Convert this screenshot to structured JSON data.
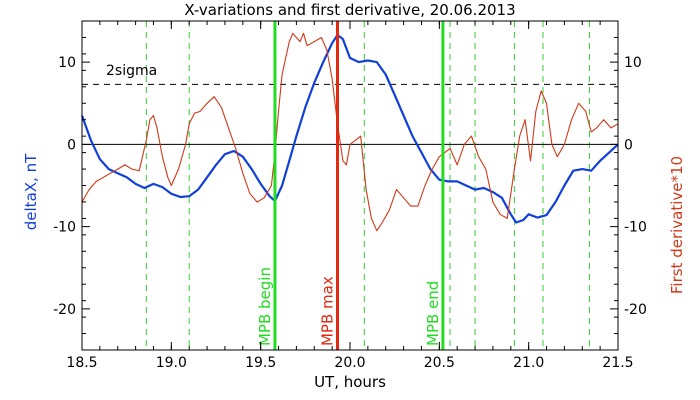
{
  "chart_data": {
    "type": "line",
    "title": "X-variations and first derivative, 20.06.2013",
    "xlabel": "UT, hours",
    "ylabel_left": "deltaX, nT",
    "ylabel_right": "First derivative*10",
    "xlim": [
      18.5,
      21.5
    ],
    "ylim": [
      -25,
      15
    ],
    "x_ticks": [
      18.5,
      19.0,
      19.5,
      20.0,
      20.5,
      21.0,
      21.5
    ],
    "x_tick_labels": [
      "18.5",
      "19.0",
      "19.5",
      "20.0",
      "20.5",
      "21.0",
      "21.5"
    ],
    "y_ticks": [
      10,
      0,
      -10,
      -20
    ],
    "y_tick_labels": [
      "10",
      "0",
      "-10",
      "-20"
    ],
    "zero_line": 0,
    "sigma_level": 7.3,
    "sigma_label": "2sigma",
    "colors": {
      "deltaX": "#1040d8",
      "derivative": "#d03818",
      "markers_green": "#22dd22",
      "marker_max": "#e02a10",
      "dashed_green": "#33cc33",
      "axis": "#000000"
    },
    "markers": [
      {
        "x": 19.58,
        "label": "MPB begin",
        "color": "#22dd22"
      },
      {
        "x": 19.93,
        "label": "MPB max",
        "color": "#e02a10"
      },
      {
        "x": 20.52,
        "label": "MPB end",
        "color": "#22dd22"
      }
    ],
    "dashed_verticals": [
      18.86,
      19.1,
      20.08,
      20.56,
      20.7,
      20.92,
      21.08,
      21.34
    ],
    "series": [
      {
        "name": "deltaX",
        "axis": "left",
        "x": [
          18.5,
          18.55,
          18.6,
          18.65,
          18.7,
          18.75,
          18.8,
          18.85,
          18.9,
          18.95,
          19.0,
          19.05,
          19.1,
          19.15,
          19.2,
          19.25,
          19.3,
          19.35,
          19.4,
          19.45,
          19.5,
          19.55,
          19.58,
          19.62,
          19.66,
          19.7,
          19.75,
          19.8,
          19.85,
          19.9,
          19.93,
          19.96,
          20.0,
          20.05,
          20.1,
          20.15,
          20.2,
          20.25,
          20.3,
          20.35,
          20.4,
          20.45,
          20.5,
          20.55,
          20.6,
          20.65,
          20.7,
          20.75,
          20.8,
          20.85,
          20.9,
          20.93,
          20.97,
          21.0,
          21.05,
          21.1,
          21.15,
          21.2,
          21.25,
          21.3,
          21.35,
          21.4,
          21.45,
          21.5
        ],
        "y": [
          3.5,
          0.5,
          -1.8,
          -3.0,
          -3.5,
          -4.0,
          -4.8,
          -5.3,
          -4.8,
          -5.2,
          -6.0,
          -6.4,
          -6.3,
          -5.5,
          -4.0,
          -2.5,
          -1.2,
          -0.8,
          -1.5,
          -3.0,
          -4.8,
          -6.3,
          -6.9,
          -5.0,
          -2.0,
          1.0,
          4.5,
          7.5,
          10.0,
          12.3,
          13.3,
          12.8,
          10.5,
          10.0,
          10.2,
          10.0,
          8.5,
          6.0,
          3.5,
          1.0,
          -1.0,
          -3.0,
          -4.3,
          -4.5,
          -4.5,
          -5.0,
          -5.5,
          -5.3,
          -5.8,
          -6.5,
          -8.5,
          -9.5,
          -9.2,
          -8.5,
          -8.9,
          -8.6,
          -7.0,
          -5.0,
          -3.2,
          -3.0,
          -3.2,
          -2.0,
          -1.0,
          0.0
        ]
      },
      {
        "name": "First derivative*10",
        "axis": "right",
        "x": [
          18.5,
          18.54,
          18.58,
          18.62,
          18.66,
          18.7,
          18.74,
          18.78,
          18.82,
          18.86,
          18.88,
          18.9,
          18.92,
          18.95,
          18.98,
          19.0,
          19.04,
          19.08,
          19.1,
          19.13,
          19.16,
          19.2,
          19.24,
          19.28,
          19.32,
          19.36,
          19.4,
          19.44,
          19.48,
          19.52,
          19.56,
          19.58,
          19.6,
          19.62,
          19.64,
          19.66,
          19.68,
          19.7,
          19.72,
          19.74,
          19.76,
          19.8,
          19.84,
          19.87,
          19.9,
          19.93,
          19.96,
          19.98,
          20.0,
          20.03,
          20.06,
          20.09,
          20.12,
          20.15,
          20.18,
          20.22,
          20.26,
          20.3,
          20.34,
          20.38,
          20.42,
          20.46,
          20.5,
          20.53,
          20.56,
          20.6,
          20.64,
          20.68,
          20.72,
          20.76,
          20.8,
          20.84,
          20.88,
          20.92,
          20.95,
          20.98,
          21.01,
          21.04,
          21.07,
          21.1,
          21.13,
          21.16,
          21.2,
          21.24,
          21.28,
          21.32,
          21.35,
          21.38,
          21.42,
          21.46,
          21.5
        ],
        "y": [
          -7.0,
          -5.5,
          -4.5,
          -4.0,
          -3.5,
          -3.0,
          -2.5,
          -3.0,
          -3.2,
          0.5,
          3.0,
          3.5,
          2.0,
          -1.5,
          -4.0,
          -5.0,
          -3.0,
          0.0,
          2.5,
          3.8,
          4.0,
          5.0,
          5.8,
          4.5,
          2.0,
          -0.5,
          -3.5,
          -6.0,
          -7.0,
          -6.5,
          -5.0,
          -1.0,
          4.0,
          8.5,
          10.5,
          12.5,
          13.5,
          13.0,
          12.5,
          13.5,
          12.0,
          12.5,
          13.0,
          11.5,
          8.0,
          2.5,
          -2.0,
          -2.5,
          0.0,
          0.5,
          1.0,
          -5.5,
          -9.0,
          -10.5,
          -9.5,
          -8.0,
          -5.5,
          -6.5,
          -7.5,
          -7.5,
          -5.0,
          -3.0,
          -1.5,
          -1.0,
          -0.5,
          -2.5,
          0.0,
          1.0,
          -1.5,
          -3.0,
          -7.0,
          -8.5,
          -9.0,
          -3.0,
          1.0,
          3.0,
          -2.0,
          4.0,
          6.5,
          5.0,
          0.0,
          -1.5,
          0.0,
          3.0,
          5.0,
          4.0,
          1.5,
          2.0,
          3.0,
          2.0,
          2.5
        ]
      }
    ]
  }
}
